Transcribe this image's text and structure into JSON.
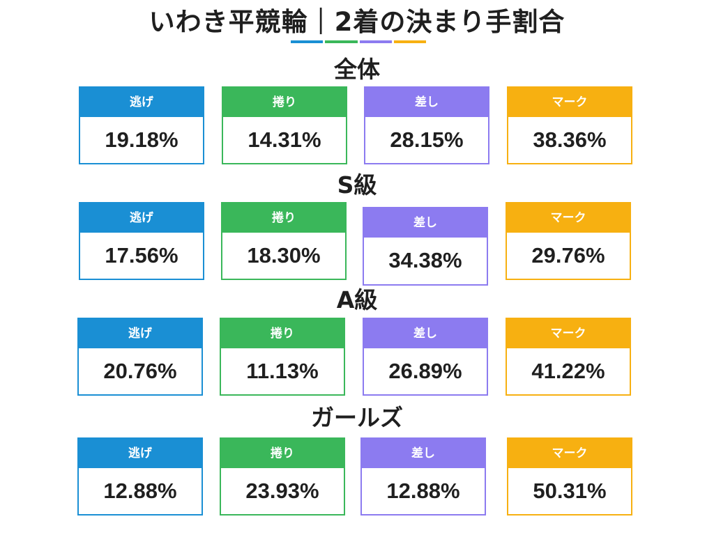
{
  "title": "いわき平競輪｜2着の決まり手割合",
  "colors": {
    "nige": "#1a8fd4",
    "makuri": "#3ab75a",
    "sashi": "#8c7bf0",
    "mark": "#f7b011"
  },
  "sections": [
    {
      "label": "全体",
      "cards": [
        {
          "label": "逃げ",
          "value": "19.18%"
        },
        {
          "label": "捲り",
          "value": "14.31%"
        },
        {
          "label": "差し",
          "value": "28.15%"
        },
        {
          "label": "マーク",
          "value": "38.36%"
        }
      ]
    },
    {
      "label": "S級",
      "cards": [
        {
          "label": "逃げ",
          "value": "17.56%"
        },
        {
          "label": "捲り",
          "value": "18.30%"
        },
        {
          "label": "差し",
          "value": "34.38%"
        },
        {
          "label": "マーク",
          "value": "29.76%"
        }
      ]
    },
    {
      "label": "A級",
      "cards": [
        {
          "label": "逃げ",
          "value": "20.76%"
        },
        {
          "label": "捲り",
          "value": "11.13%"
        },
        {
          "label": "差し",
          "value": "26.89%"
        },
        {
          "label": "マーク",
          "value": "41.22%"
        }
      ]
    },
    {
      "label": "ガールズ",
      "cards": [
        {
          "label": "逃げ",
          "value": "12.88%"
        },
        {
          "label": "捲り",
          "value": "23.93%"
        },
        {
          "label": "差し",
          "value": "12.88%"
        },
        {
          "label": "マーク",
          "value": "50.31%"
        }
      ]
    }
  ]
}
